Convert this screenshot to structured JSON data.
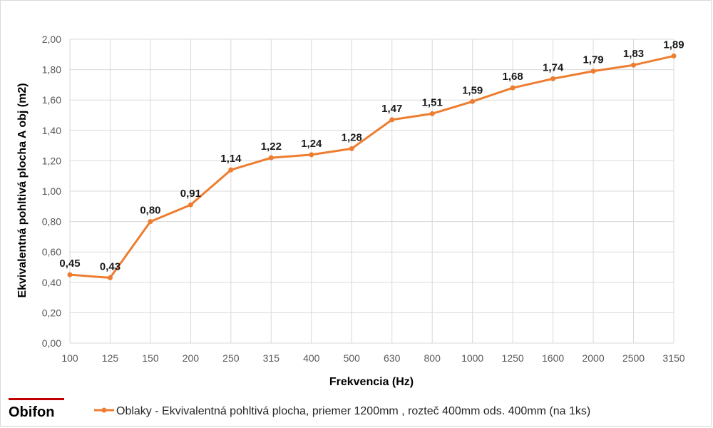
{
  "chart_data": {
    "type": "line",
    "categories": [
      "100",
      "125",
      "150",
      "200",
      "250",
      "315",
      "400",
      "500",
      "630",
      "800",
      "1000",
      "1250",
      "1600",
      "2000",
      "2500",
      "3150"
    ],
    "series": [
      {
        "name": "Oblaky - Ekvivalentná pohltivá plocha,  priemer 1200mm , rozteč 400mm ods. 400mm (na 1ks)",
        "values": [
          0.45,
          0.43,
          0.8,
          0.91,
          1.14,
          1.22,
          1.24,
          1.28,
          1.47,
          1.51,
          1.59,
          1.68,
          1.74,
          1.79,
          1.83,
          1.89
        ],
        "labels": [
          "0,45",
          "0,43",
          "0,80",
          "0,91",
          "1,14",
          "1,22",
          "1,24",
          "1,28",
          "1,47",
          "1,51",
          "1,59",
          "1,68",
          "1,74",
          "1,79",
          "1,83",
          "1,89"
        ],
        "color": "#ed7d31"
      }
    ],
    "xlabel": "Frekvencia (Hz)",
    "ylabel": "Ekvivalentná pohltivá plocha A obj (m2)",
    "ylim": [
      0,
      2
    ],
    "yticks": [
      "0,00",
      "0,20",
      "0,40",
      "0,60",
      "0,80",
      "1,00",
      "1,20",
      "1,40",
      "1,60",
      "1,80",
      "2,00"
    ],
    "grid": true,
    "legend": "bottom"
  },
  "brand": {
    "logo_text": "Obifon",
    "accent": "#c00000"
  }
}
